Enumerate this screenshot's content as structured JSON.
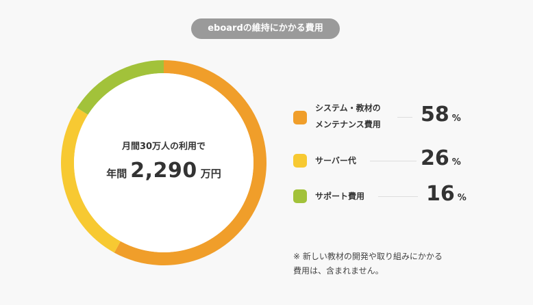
{
  "title": "eboardの維持にかかる費用",
  "center": {
    "label": "月間30万人の利用で",
    "prefix": "年間",
    "amount": "2,290",
    "unit": "万円"
  },
  "colors": {
    "orange": "#f09e2a",
    "yellow": "#f7c932",
    "green": "#a2c23a"
  },
  "chart_data": {
    "type": "pie",
    "categories": [
      "システム・教材のメンテナンス費用",
      "サーバー代",
      "サポート費用"
    ],
    "values": [
      58,
      26,
      16
    ],
    "unit": "%"
  },
  "legend": [
    {
      "line1": "システム・教材の",
      "line2": "メンテナンス費用",
      "value": "58",
      "unit": "%"
    },
    {
      "line1": "サーバー代",
      "line2": "",
      "value": "26",
      "unit": "%"
    },
    {
      "line1": "サポート費用",
      "line2": "",
      "value": "16",
      "unit": "%"
    }
  ],
  "note": {
    "line1": "※ 新しい教材の開発や取り組みにかかる",
    "line2": "費用は、含まれません。"
  }
}
